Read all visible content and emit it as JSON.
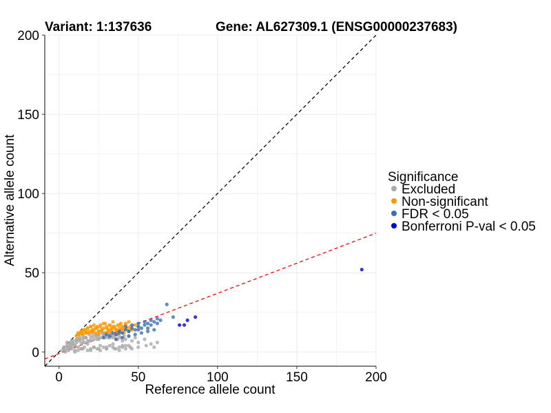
{
  "chart_data": {
    "type": "scatter",
    "title_left": "Variant: 1:137636",
    "title_right": "Gene: AL627309.1 (ENSG00000237683)",
    "xlabel": "Reference allele count",
    "ylabel": "Alternative allele count",
    "xlim": [
      -9,
      200
    ],
    "ylim": [
      -9,
      200
    ],
    "xticks": [
      0,
      50,
      100,
      150,
      200
    ],
    "yticks": [
      0,
      50,
      100,
      150,
      200
    ],
    "grid": true,
    "legend": {
      "title": "Significance",
      "position": "right",
      "items": [
        {
          "label": "Excluded",
          "color": "#aaaaaa"
        },
        {
          "label": "Non-significant",
          "color": "#ff9900"
        },
        {
          "label": "FDR < 0.05",
          "color": "#3a6fb0"
        },
        {
          "label": "Bonferroni P-val < 0.05",
          "color": "#0000ee"
        }
      ]
    },
    "reference_lines": [
      {
        "name": "identity",
        "slope": 1,
        "intercept": 0,
        "color": "#000000",
        "style": "dashed"
      },
      {
        "name": "fitted",
        "slope": 0.38,
        "intercept": -1,
        "color": "#ff0000",
        "style": "dashed"
      }
    ],
    "series": [
      {
        "name": "Excluded",
        "color": "#aaaaaa",
        "x": [
          2,
          3,
          4,
          5,
          6,
          7,
          8,
          9,
          10,
          11,
          12,
          13,
          14,
          15,
          16,
          18,
          20,
          22,
          24,
          26,
          28,
          30,
          32,
          34,
          36,
          38,
          40,
          42,
          44,
          46,
          48,
          50,
          54,
          58,
          62,
          4,
          6,
          8,
          10,
          12,
          14,
          16,
          18,
          20,
          22,
          24,
          26,
          28,
          30,
          32,
          34,
          36,
          38,
          40,
          42,
          44,
          5,
          7,
          9,
          11,
          13,
          15,
          17,
          19,
          21,
          23,
          25,
          27,
          29,
          31,
          33,
          35,
          37,
          39,
          41,
          6,
          10,
          14,
          18,
          22,
          26,
          30,
          34,
          38,
          42,
          46,
          50,
          8,
          12,
          16,
          20,
          24,
          28,
          32,
          36,
          40,
          3,
          5,
          7,
          9,
          11,
          13,
          15,
          17,
          19,
          21,
          23,
          25,
          27,
          29,
          31,
          33,
          35,
          37,
          10,
          15,
          20,
          25,
          30,
          35,
          40,
          45,
          55,
          60
        ],
        "y": [
          1,
          2,
          1,
          3,
          2,
          4,
          3,
          5,
          4,
          6,
          3,
          7,
          5,
          8,
          6,
          7,
          9,
          8,
          10,
          9,
          11,
          10,
          12,
          9,
          11,
          10,
          12,
          8,
          10,
          7,
          9,
          6,
          8,
          5,
          6,
          0,
          1,
          2,
          0,
          1,
          2,
          3,
          1,
          2,
          3,
          2,
          1,
          3,
          2,
          4,
          3,
          2,
          1,
          3,
          2,
          4,
          6,
          5,
          7,
          8,
          9,
          10,
          9,
          11,
          12,
          10,
          11,
          13,
          12,
          9,
          10,
          11,
          8,
          9,
          10,
          3,
          4,
          2,
          5,
          3,
          4,
          2,
          5,
          3,
          4,
          2,
          3,
          7,
          8,
          9,
          7,
          8,
          10,
          9,
          8,
          7,
          3,
          4,
          6,
          5,
          7,
          8,
          6,
          9,
          7,
          10,
          11,
          8,
          12,
          9,
          13,
          11,
          10,
          12,
          1,
          2,
          1,
          2,
          3,
          2,
          4,
          3,
          4,
          3
        ]
      },
      {
        "name": "Non-significant",
        "color": "#ff9900",
        "x": [
          11,
          12,
          13,
          14,
          15,
          16,
          17,
          18,
          19,
          20,
          21,
          22,
          23,
          24,
          25,
          26,
          27,
          28,
          29,
          30,
          31,
          32,
          33,
          34,
          35,
          36,
          37,
          38,
          39,
          40,
          41,
          42,
          43,
          44,
          45,
          46,
          48,
          50,
          12,
          14,
          16,
          18,
          20,
          22,
          24,
          26,
          28,
          30,
          32,
          34,
          36,
          38,
          40,
          42,
          15,
          17,
          19,
          21,
          23,
          25,
          27,
          29,
          31,
          33,
          35,
          37,
          39,
          13,
          17,
          21,
          25,
          29,
          33,
          37,
          41,
          45
        ],
        "y": [
          10,
          11,
          12,
          13,
          12,
          14,
          13,
          15,
          12,
          16,
          13,
          14,
          15,
          16,
          13,
          17,
          14,
          15,
          18,
          16,
          14,
          17,
          15,
          19,
          16,
          14,
          17,
          15,
          18,
          16,
          14,
          17,
          15,
          19,
          16,
          14,
          17,
          16,
          12,
          13,
          14,
          15,
          16,
          17,
          15,
          16,
          18,
          15,
          17,
          16,
          14,
          17,
          15,
          18,
          11,
          12,
          13,
          14,
          12,
          13,
          14,
          12,
          13,
          14,
          15,
          13,
          14,
          11,
          12,
          13,
          11,
          12,
          13,
          11,
          12,
          14
        ]
      },
      {
        "name": "FDR < 0.05",
        "color": "#3a6fb0",
        "x": [
          28,
          30,
          32,
          34,
          36,
          38,
          40,
          42,
          44,
          46,
          48,
          50,
          52,
          54,
          56,
          58,
          60,
          62,
          64,
          68,
          72,
          36,
          40,
          44,
          48,
          52,
          56,
          60,
          42,
          46,
          50,
          54,
          58,
          62,
          38,
          44,
          50,
          56
        ],
        "y": [
          9,
          11,
          10,
          12,
          11,
          13,
          12,
          14,
          13,
          15,
          14,
          16,
          15,
          17,
          18,
          17,
          19,
          18,
          20,
          30,
          22,
          8,
          9,
          10,
          11,
          12,
          13,
          14,
          16,
          17,
          18,
          19,
          20,
          21,
          12,
          13,
          14,
          15
        ]
      },
      {
        "name": "Bonferroni P-val < 0.05",
        "color": "#0000ee",
        "x": [
          76,
          79,
          81,
          86,
          191
        ],
        "y": [
          17,
          17,
          20,
          22,
          52
        ]
      }
    ]
  }
}
